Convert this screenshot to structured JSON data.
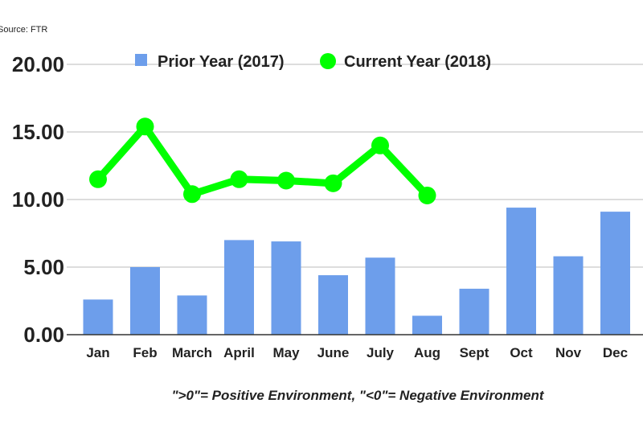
{
  "source": "Source: FTR",
  "footnote": "\">0\"= Positive Environment, \"<0\"= Negative Environment",
  "chart_data": {
    "type": "bar+line",
    "categories": [
      "Jan",
      "Feb",
      "March",
      "April",
      "May",
      "June",
      "July",
      "Aug",
      "Sept",
      "Oct",
      "Nov",
      "Dec"
    ],
    "series": [
      {
        "name": "Prior Year (2017)",
        "type": "bar",
        "color": "#6d9eeb",
        "values": [
          2.6,
          5.0,
          2.9,
          7.0,
          6.9,
          4.4,
          5.7,
          1.4,
          3.4,
          9.4,
          5.8,
          9.1
        ]
      },
      {
        "name": "Current Year (2018)",
        "type": "line",
        "color": "#00ff00",
        "values": [
          11.5,
          15.4,
          10.4,
          11.5,
          11.4,
          11.2,
          14.0,
          10.3,
          null,
          null,
          null,
          null
        ]
      }
    ],
    "yticks": [
      "0.00",
      "5.00",
      "10.00",
      "15.00",
      "20.00"
    ],
    "ylim": [
      0,
      20
    ],
    "grid": true,
    "legend": "top-center"
  }
}
